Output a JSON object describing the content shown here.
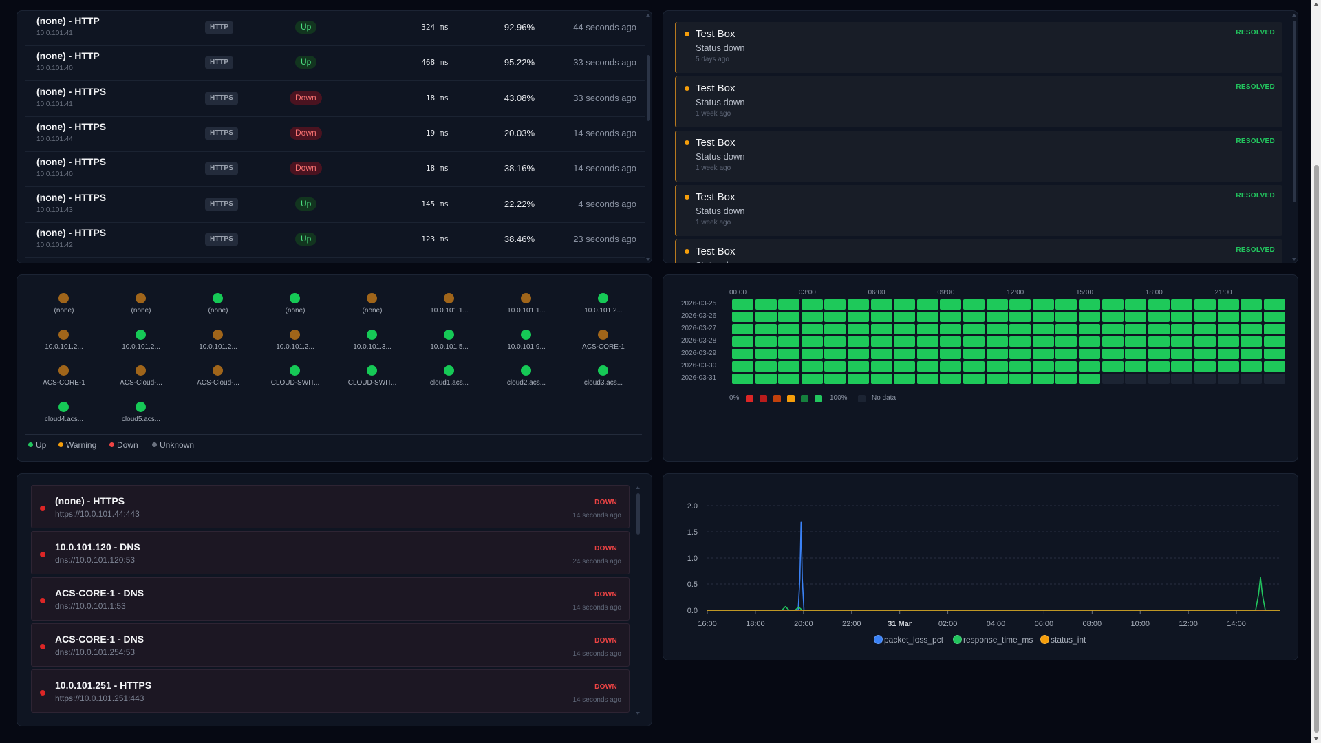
{
  "monitors": [
    {
      "name": "(none) - HTTP",
      "ip": "10.0.101.41",
      "protocol": "HTTP",
      "status": "Up",
      "latency": "324 ms",
      "uptime": "92.96%",
      "checked": "44 seconds ago"
    },
    {
      "name": "(none) - HTTP",
      "ip": "10.0.101.40",
      "protocol": "HTTP",
      "status": "Up",
      "latency": "468 ms",
      "uptime": "95.22%",
      "checked": "33 seconds ago"
    },
    {
      "name": "(none) - HTTPS",
      "ip": "10.0.101.41",
      "protocol": "HTTPS",
      "status": "Down",
      "latency": "18 ms",
      "uptime": "43.08%",
      "checked": "33 seconds ago"
    },
    {
      "name": "(none) - HTTPS",
      "ip": "10.0.101.44",
      "protocol": "HTTPS",
      "status": "Down",
      "latency": "19 ms",
      "uptime": "20.03%",
      "checked": "14 seconds ago"
    },
    {
      "name": "(none) - HTTPS",
      "ip": "10.0.101.40",
      "protocol": "HTTPS",
      "status": "Down",
      "latency": "18 ms",
      "uptime": "38.16%",
      "checked": "14 seconds ago"
    },
    {
      "name": "(none) - HTTPS",
      "ip": "10.0.101.43",
      "protocol": "HTTPS",
      "status": "Up",
      "latency": "145 ms",
      "uptime": "22.22%",
      "checked": "4 seconds ago"
    },
    {
      "name": "(none) - HTTPS",
      "ip": "10.0.101.42",
      "protocol": "HTTPS",
      "status": "Up",
      "latency": "123 ms",
      "uptime": "38.46%",
      "checked": "23 seconds ago"
    }
  ],
  "alerts": [
    {
      "title": "Test Box",
      "message": "Status down",
      "time": "5 days ago",
      "badge": "RESOLVED"
    },
    {
      "title": "Test Box",
      "message": "Status down",
      "time": "1 week ago",
      "badge": "RESOLVED"
    },
    {
      "title": "Test Box",
      "message": "Status down",
      "time": "1 week ago",
      "badge": "RESOLVED"
    },
    {
      "title": "Test Box",
      "message": "Status down",
      "time": "1 week ago",
      "badge": "RESOLVED"
    },
    {
      "title": "Test Box",
      "message": "Status down",
      "time": "",
      "badge": "RESOLVED"
    }
  ],
  "hosts": [
    {
      "label": "(none)",
      "state": "warning"
    },
    {
      "label": "(none)",
      "state": "warning"
    },
    {
      "label": "(none)",
      "state": "up"
    },
    {
      "label": "(none)",
      "state": "up"
    },
    {
      "label": "(none)",
      "state": "warning"
    },
    {
      "label": "10.0.101.1...",
      "state": "warning"
    },
    {
      "label": "10.0.101.1...",
      "state": "warning"
    },
    {
      "label": "10.0.101.2...",
      "state": "up"
    },
    {
      "label": "10.0.101.2...",
      "state": "warning"
    },
    {
      "label": "10.0.101.2...",
      "state": "up"
    },
    {
      "label": "10.0.101.2...",
      "state": "warning"
    },
    {
      "label": "10.0.101.2...",
      "state": "warning"
    },
    {
      "label": "10.0.101.3...",
      "state": "up"
    },
    {
      "label": "10.0.101.5...",
      "state": "up"
    },
    {
      "label": "10.0.101.9...",
      "state": "up"
    },
    {
      "label": "ACS-CORE-1",
      "state": "warning"
    },
    {
      "label": "ACS-CORE-1",
      "state": "warning"
    },
    {
      "label": "ACS-Cloud-...",
      "state": "warning"
    },
    {
      "label": "ACS-Cloud-...",
      "state": "warning"
    },
    {
      "label": "CLOUD-SWIT...",
      "state": "up"
    },
    {
      "label": "CLOUD-SWIT...",
      "state": "up"
    },
    {
      "label": "cloud1.acs...",
      "state": "up"
    },
    {
      "label": "cloud2.acs...",
      "state": "up"
    },
    {
      "label": "cloud3.acs...",
      "state": "up"
    },
    {
      "label": "cloud4.acs...",
      "state": "up"
    },
    {
      "label": "cloud5.acs...",
      "state": "up"
    }
  ],
  "host_legend": [
    {
      "label": "Up",
      "color": "#22c55e"
    },
    {
      "label": "Warning",
      "color": "#f59e0b"
    },
    {
      "label": "Down",
      "color": "#ef4444"
    },
    {
      "label": "Unknown",
      "color": "#6b7280"
    }
  ],
  "state_colors": {
    "up": "#16c956",
    "warning": "#a0651a",
    "down": "#ef4444",
    "unknown": "#6b7280"
  },
  "heatmap": {
    "hour_labels": [
      "00:00",
      "03:00",
      "06:00",
      "09:00",
      "12:00",
      "15:00",
      "18:00",
      "21:00"
    ],
    "dates": [
      "2026-03-25",
      "2026-03-26",
      "2026-03-27",
      "2026-03-28",
      "2026-03-29",
      "2026-03-30",
      "2026-03-31"
    ],
    "hours_per_day": 24,
    "filled_hours_last_day": 16,
    "legend_min": "0%",
    "legend_max": "100%",
    "legend_nodata": "No data",
    "scale_colors": [
      "#dc2626",
      "#b91c1c",
      "#c2410c",
      "#f59e0b",
      "#15803d",
      "#22c55e"
    ],
    "full_color": "#1ec95a",
    "nodata_color": "#1c2433"
  },
  "down_monitors": [
    {
      "title": "(none) - HTTPS",
      "url": "https://10.0.101.44:443",
      "badge": "DOWN",
      "ago": "14 seconds ago"
    },
    {
      "title": "10.0.101.120 - DNS",
      "url": "dns://10.0.101.120:53",
      "badge": "DOWN",
      "ago": "24 seconds ago"
    },
    {
      "title": "ACS-CORE-1 - DNS",
      "url": "dns://10.0.101.1:53",
      "badge": "DOWN",
      "ago": "14 seconds ago"
    },
    {
      "title": "ACS-CORE-1 - DNS",
      "url": "dns://10.0.101.254:53",
      "badge": "DOWN",
      "ago": "14 seconds ago"
    },
    {
      "title": "10.0.101.251 - HTTPS",
      "url": "https://10.0.101.251:443",
      "badge": "DOWN",
      "ago": "14 seconds ago"
    }
  ],
  "chart_data": {
    "type": "line",
    "x_tick_labels": [
      "16:00",
      "18:00",
      "20:00",
      "22:00",
      "31 Mar",
      "02:00",
      "04:00",
      "06:00",
      "08:00",
      "10:00",
      "12:00",
      "14:00"
    ],
    "x_ticks_hours": [
      0,
      2,
      4,
      6,
      8,
      10,
      12,
      14,
      16,
      18,
      20,
      22
    ],
    "x_range_hours": [
      0,
      23.8
    ],
    "y_ticks": [
      0.0,
      0.5,
      1.0,
      1.5,
      2.0
    ],
    "ylim": [
      0,
      2.0
    ],
    "grid": true,
    "legend_position": "bottom",
    "series": [
      {
        "name": "packet_loss_pct",
        "color": "#3b82f6",
        "points": [
          [
            0,
            0
          ],
          [
            3.5,
            0
          ],
          [
            3.78,
            0
          ],
          [
            3.85,
            0.6
          ],
          [
            3.9,
            1.68
          ],
          [
            3.95,
            0.6
          ],
          [
            4.02,
            0
          ],
          [
            23.8,
            0
          ]
        ]
      },
      {
        "name": "response_time_ms",
        "color": "#22c55e",
        "points": [
          [
            0,
            0
          ],
          [
            3.1,
            0
          ],
          [
            3.25,
            0.07
          ],
          [
            3.4,
            0
          ],
          [
            3.65,
            0
          ],
          [
            3.8,
            0.06
          ],
          [
            3.95,
            0
          ],
          [
            22.8,
            0
          ],
          [
            22.92,
            0.3
          ],
          [
            23.0,
            0.63
          ],
          [
            23.08,
            0.3
          ],
          [
            23.2,
            0
          ],
          [
            23.8,
            0
          ]
        ]
      },
      {
        "name": "status_int",
        "color": "#f59e0b",
        "points": [
          [
            0,
            0
          ],
          [
            23.8,
            0
          ]
        ]
      }
    ]
  }
}
